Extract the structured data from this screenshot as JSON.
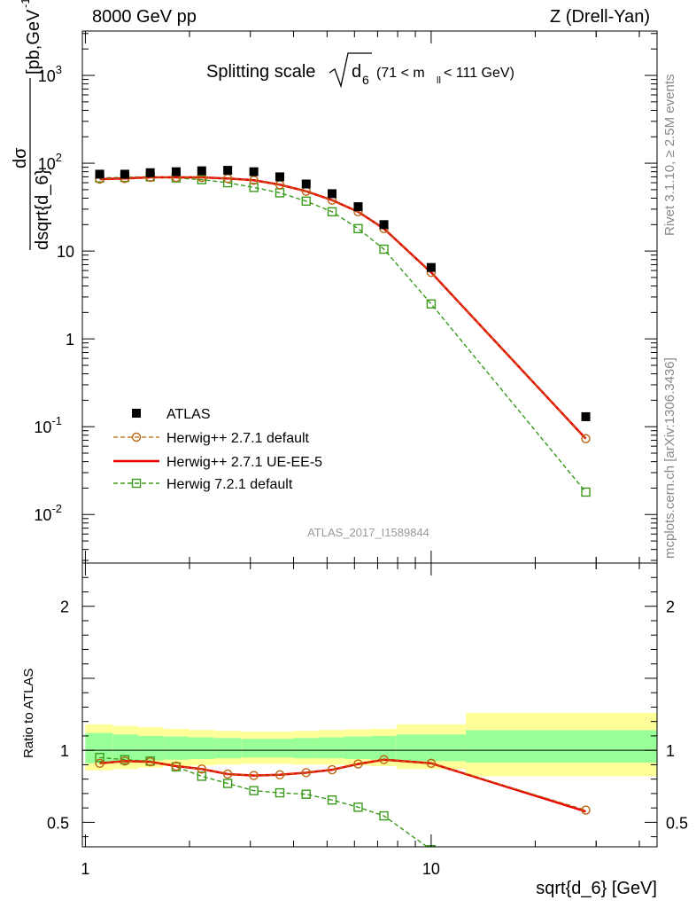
{
  "header": {
    "left": "8000 GeV pp",
    "right": "Z (Drell-Yan)"
  },
  "side_labels": {
    "top": "Rivet 3.1.10, ≥ 2.5M events",
    "bottom": "mcplots.cern.ch [arXiv:1306.3436]"
  },
  "watermark": "ATLAS_2017_I1589844",
  "chart_data": [
    {
      "type": "scatter",
      "panel": "main",
      "title_main": "Splitting scale",
      "title_sqrt": "d",
      "title_sub": "6",
      "title_range": "(71 < m",
      "title_range_sub": "ll",
      "title_range_end": " < 111 GeV)",
      "ylabel_num": "dσ",
      "ylabel_den": "dsqrt{d_6}",
      "ylabel_units": "[pb,GeV",
      "ylabel_units_sup": "-1",
      "ylabel_units_end": "]",
      "xscale": "log",
      "yscale": "log",
      "xlim": [
        0.98,
        45
      ],
      "ylim": [
        0.0028,
        3200
      ],
      "y_ticks": [
        {
          "value": 0.01,
          "base": "10",
          "exp": "-2"
        },
        {
          "value": 0.1,
          "base": "10",
          "exp": "-1"
        },
        {
          "value": 1,
          "base": "1",
          "exp": ""
        },
        {
          "value": 10,
          "base": "10",
          "exp": ""
        },
        {
          "value": 100,
          "base": "10",
          "exp": "2"
        },
        {
          "value": 1000,
          "base": "10",
          "exp": "3"
        }
      ],
      "legend_position": "bottom-left",
      "series": [
        {
          "name": "ATLAS",
          "style": "black-square",
          "x": [
            1.1,
            1.3,
            1.54,
            1.83,
            2.17,
            2.58,
            3.07,
            3.65,
            4.35,
            5.17,
            6.15,
            7.3,
            10.0,
            28.0
          ],
          "y": [
            75,
            75,
            78,
            80,
            82,
            83,
            80,
            70,
            58,
            45,
            32,
            20,
            6.5,
            0.13
          ]
        },
        {
          "name": "Herwig++ 2.7.1 default",
          "style": "brown-dashed-circle",
          "color": "#b8640f",
          "x": [
            1.1,
            1.3,
            1.54,
            1.83,
            2.17,
            2.58,
            3.07,
            3.65,
            4.35,
            5.17,
            6.15,
            7.3,
            10.0,
            28.0
          ],
          "y": [
            66,
            67,
            69,
            69,
            69,
            67,
            64,
            57,
            48,
            38,
            28,
            18,
            5.7,
            0.073
          ]
        },
        {
          "name": "Herwig++ 2.7.1 UE-EE-5",
          "style": "red-solid",
          "color": "#ee0000",
          "x": [
            1.1,
            1.3,
            1.54,
            1.83,
            2.17,
            2.58,
            3.07,
            3.65,
            4.35,
            5.17,
            6.15,
            7.3,
            10.0,
            28.0
          ],
          "y": [
            66,
            67,
            69,
            69,
            69,
            67,
            64,
            57,
            48,
            38,
            28,
            18,
            5.7,
            0.073
          ]
        },
        {
          "name": "Herwig 7.2.1 default",
          "style": "green-dashed-square",
          "color": "#3a9a1a",
          "x": [
            1.1,
            1.3,
            1.54,
            1.83,
            2.17,
            2.58,
            3.07,
            3.65,
            4.35,
            5.17,
            6.15,
            7.3,
            10.0,
            28.0
          ],
          "y": [
            68,
            69,
            70,
            68,
            65,
            60,
            53,
            46,
            37,
            28,
            18,
            10.5,
            2.5,
            0.018
          ]
        }
      ]
    },
    {
      "type": "line",
      "panel": "ratio",
      "ylabel": "Ratio to ATLAS",
      "xlabel": "sqrt{d_6} [GeV]",
      "xscale": "log",
      "xlim": [
        0.98,
        45
      ],
      "ylim": [
        0.33,
        2.3
      ],
      "x_ticks": [
        {
          "value": 1,
          "label": "1"
        },
        {
          "value": 10,
          "label": "10"
        }
      ],
      "y_ticks": [
        {
          "value": 0.5,
          "label": "0.5"
        },
        {
          "value": 1,
          "label": "1"
        },
        {
          "value": 2,
          "label": "2"
        }
      ],
      "uncertainty_bands": {
        "colors": {
          "outer": "#ffff99",
          "inner": "#99ff99"
        },
        "bins": [
          {
            "x0": 1.0,
            "x1": 1.2,
            "outer": [
              0.86,
              1.18
            ],
            "inner": [
              0.91,
              1.12
            ]
          },
          {
            "x0": 1.2,
            "x1": 1.42,
            "outer": [
              0.87,
              1.17
            ],
            "inner": [
              0.92,
              1.11
            ]
          },
          {
            "x0": 1.42,
            "x1": 1.68,
            "outer": [
              0.88,
              1.16
            ],
            "inner": [
              0.93,
              1.1
            ]
          },
          {
            "x0": 1.68,
            "x1": 2.0,
            "outer": [
              0.89,
              1.15
            ],
            "inner": [
              0.935,
              1.095
            ]
          },
          {
            "x0": 2.0,
            "x1": 2.37,
            "outer": [
              0.895,
              1.14
            ],
            "inner": [
              0.94,
              1.09
            ]
          },
          {
            "x0": 2.37,
            "x1": 2.82,
            "outer": [
              0.9,
              1.135
            ],
            "inner": [
              0.945,
              1.085
            ]
          },
          {
            "x0": 2.82,
            "x1": 3.35,
            "outer": [
              0.905,
              1.13
            ],
            "inner": [
              0.95,
              1.08
            ]
          },
          {
            "x0": 3.35,
            "x1": 3.98,
            "outer": [
              0.905,
              1.13
            ],
            "inner": [
              0.95,
              1.08
            ]
          },
          {
            "x0": 3.98,
            "x1": 4.73,
            "outer": [
              0.9,
              1.135
            ],
            "inner": [
              0.945,
              1.085
            ]
          },
          {
            "x0": 4.73,
            "x1": 5.62,
            "outer": [
              0.9,
              1.14
            ],
            "inner": [
              0.945,
              1.09
            ]
          },
          {
            "x0": 5.62,
            "x1": 6.68,
            "outer": [
              0.895,
              1.145
            ],
            "inner": [
              0.94,
              1.095
            ]
          },
          {
            "x0": 6.68,
            "x1": 7.94,
            "outer": [
              0.89,
              1.15
            ],
            "inner": [
              0.935,
              1.1
            ]
          },
          {
            "x0": 7.94,
            "x1": 12.6,
            "outer": [
              0.87,
              1.18
            ],
            "inner": [
              0.925,
              1.11
            ]
          },
          {
            "x0": 12.6,
            "x1": 45.0,
            "outer": [
              0.82,
              1.26
            ],
            "inner": [
              0.915,
              1.14
            ]
          }
        ]
      },
      "series": [
        {
          "name": "Herwig++ 2.7.1 default",
          "color": "#b8640f",
          "x": [
            1.1,
            1.3,
            1.54,
            1.83,
            2.17,
            2.58,
            3.07,
            3.65,
            4.35,
            5.17,
            6.15,
            7.3,
            10.0,
            28.0
          ],
          "y": [
            0.91,
            0.925,
            0.92,
            0.89,
            0.87,
            0.835,
            0.825,
            0.83,
            0.845,
            0.865,
            0.905,
            0.935,
            0.91,
            0.585
          ]
        },
        {
          "name": "Herwig++ 2.7.1 UE-EE-5",
          "color": "#ee0000",
          "x": [
            1.1,
            1.3,
            1.54,
            1.83,
            2.17,
            2.58,
            3.07,
            3.65,
            4.35,
            5.17,
            6.15,
            7.3,
            10.0,
            28.0
          ],
          "y": [
            0.91,
            0.925,
            0.92,
            0.89,
            0.87,
            0.835,
            0.825,
            0.83,
            0.845,
            0.865,
            0.905,
            0.935,
            0.91,
            0.575
          ]
        },
        {
          "name": "Herwig 7.2.1 default",
          "color": "#3a9a1a",
          "x": [
            1.1,
            1.3,
            1.54,
            1.83,
            2.17,
            2.58,
            3.07,
            3.65,
            4.35,
            5.17,
            6.15,
            7.3,
            10.0
          ],
          "y": [
            0.95,
            0.935,
            0.925,
            0.885,
            0.82,
            0.77,
            0.72,
            0.705,
            0.695,
            0.655,
            0.605,
            0.545,
            0.31
          ]
        }
      ]
    }
  ]
}
